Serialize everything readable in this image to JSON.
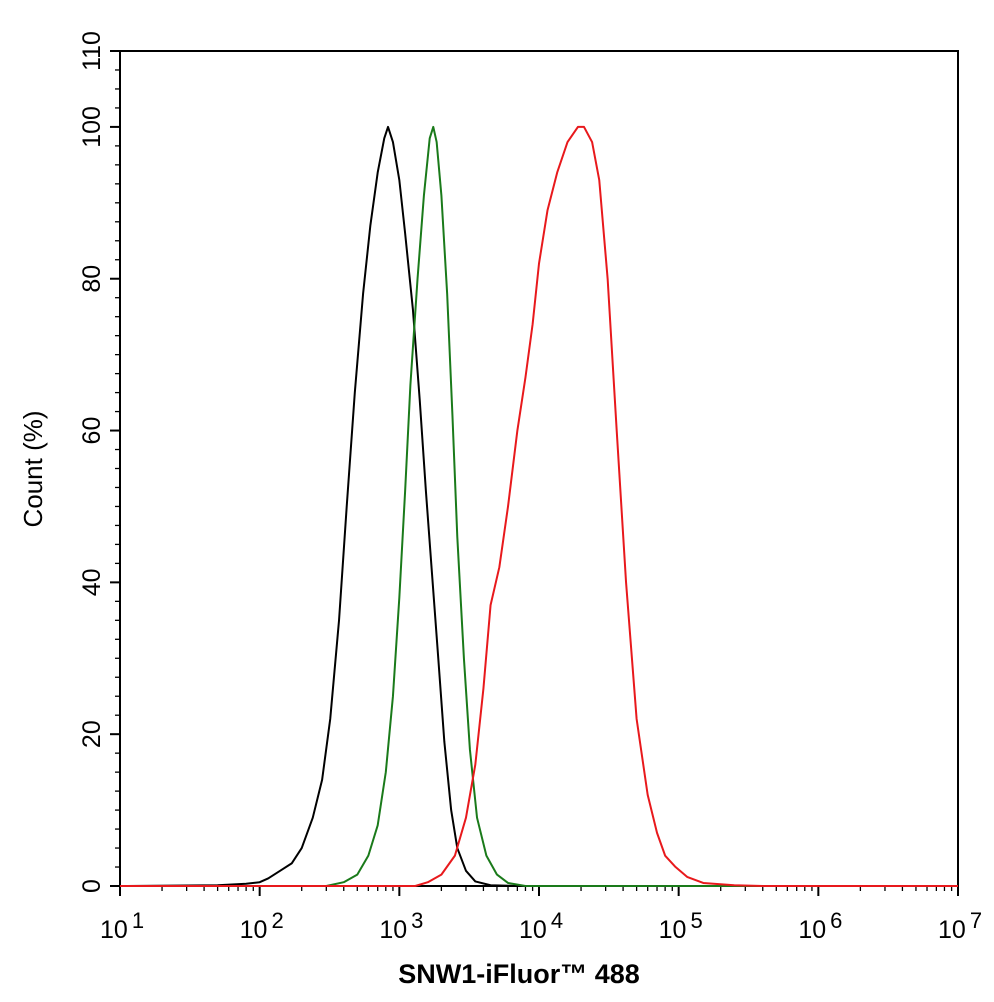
{
  "chart_data": {
    "type": "line",
    "title": "",
    "xlabel": "SNW1-iFluor™ 488",
    "ylabel": "Count  (%)",
    "xscale": "log",
    "xlim": [
      10,
      10000000
    ],
    "ylim": [
      0,
      110
    ],
    "grid": false,
    "legend": "none",
    "x_ticks": [
      {
        "base": "10",
        "exp": "1"
      },
      {
        "base": "10",
        "exp": "2"
      },
      {
        "base": "10",
        "exp": "3"
      },
      {
        "base": "10",
        "exp": "4"
      },
      {
        "base": "10",
        "exp": "5"
      },
      {
        "base": "10",
        "exp": "6"
      },
      {
        "base": "10",
        "exp": "7"
      }
    ],
    "y_ticks": [
      "0",
      "20",
      "40",
      "60",
      "80",
      "100",
      "110"
    ],
    "series": [
      {
        "color": "#000000",
        "points": [
          [
            10,
            0
          ],
          [
            50,
            0.1
          ],
          [
            80,
            0.3
          ],
          [
            100,
            0.5
          ],
          [
            115,
            1.0
          ],
          [
            140,
            2.0
          ],
          [
            170,
            3.0
          ],
          [
            200,
            5.0
          ],
          [
            240,
            9.0
          ],
          [
            280,
            14.0
          ],
          [
            320,
            22.0
          ],
          [
            370,
            35.0
          ],
          [
            420,
            50.0
          ],
          [
            480,
            65.0
          ],
          [
            550,
            78.0
          ],
          [
            620,
            87.0
          ],
          [
            700,
            94.0
          ],
          [
            780,
            98.5
          ],
          [
            830,
            100
          ],
          [
            900,
            98.0
          ],
          [
            1000,
            93.0
          ],
          [
            1100,
            86.0
          ],
          [
            1250,
            76.0
          ],
          [
            1400,
            64.0
          ],
          [
            1550,
            52.0
          ],
          [
            1700,
            42.0
          ],
          [
            1900,
            30.0
          ],
          [
            2100,
            19.0
          ],
          [
            2350,
            10.0
          ],
          [
            2600,
            5.0
          ],
          [
            3000,
            2.0
          ],
          [
            3500,
            0.6
          ],
          [
            4500,
            0.1
          ],
          [
            7000,
            0
          ],
          [
            10000000,
            0
          ]
        ]
      },
      {
        "color": "#1a7a1a",
        "points": [
          [
            10,
            0
          ],
          [
            300,
            0
          ],
          [
            400,
            0.5
          ],
          [
            500,
            1.5
          ],
          [
            600,
            4.0
          ],
          [
            700,
            8.0
          ],
          [
            800,
            15.0
          ],
          [
            900,
            25.0
          ],
          [
            1000,
            38.0
          ],
          [
            1100,
            52.0
          ],
          [
            1200,
            66.0
          ],
          [
            1350,
            80.0
          ],
          [
            1500,
            91.0
          ],
          [
            1650,
            98.5
          ],
          [
            1750,
            100
          ],
          [
            1850,
            98.0
          ],
          [
            2000,
            91.0
          ],
          [
            2200,
            78.0
          ],
          [
            2400,
            62.0
          ],
          [
            2600,
            46.0
          ],
          [
            2900,
            30.0
          ],
          [
            3200,
            18.0
          ],
          [
            3600,
            9.0
          ],
          [
            4200,
            4.0
          ],
          [
            5000,
            1.5
          ],
          [
            6000,
            0.4
          ],
          [
            8000,
            0
          ],
          [
            10000000,
            0
          ]
        ]
      },
      {
        "color": "#e8191c",
        "points": [
          [
            10,
            0
          ],
          [
            1300,
            0
          ],
          [
            1600,
            0.5
          ],
          [
            2000,
            1.5
          ],
          [
            2500,
            4.0
          ],
          [
            3000,
            9.0
          ],
          [
            3500,
            16.0
          ],
          [
            4000,
            26.0
          ],
          [
            4500,
            37.0
          ],
          [
            5200,
            42.0
          ],
          [
            6000,
            50.0
          ],
          [
            7000,
            60.0
          ],
          [
            8000,
            67.0
          ],
          [
            9000,
            74.0
          ],
          [
            10000,
            82.0
          ],
          [
            11500,
            89.0
          ],
          [
            13500,
            94.0
          ],
          [
            16000,
            98.0
          ],
          [
            19000,
            100
          ],
          [
            21000,
            100
          ],
          [
            24000,
            98.0
          ],
          [
            27000,
            93.0
          ],
          [
            31000,
            80.0
          ],
          [
            36000,
            60.0
          ],
          [
            42000,
            40.0
          ],
          [
            50000,
            22.0
          ],
          [
            60000,
            12.0
          ],
          [
            70000,
            7.0
          ],
          [
            80000,
            4.0
          ],
          [
            95000,
            2.5
          ],
          [
            115000,
            1.2
          ],
          [
            150000,
            0.4
          ],
          [
            250000,
            0.1
          ],
          [
            400000,
            0
          ],
          [
            10000000,
            0
          ]
        ]
      }
    ]
  }
}
